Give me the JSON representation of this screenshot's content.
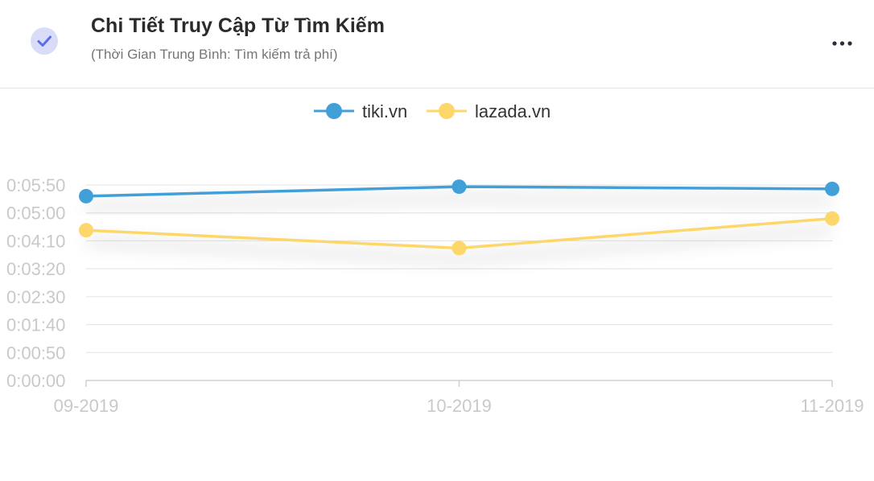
{
  "header": {
    "title": "Chi Tiết Truy Cập Từ Tìm Kiếm",
    "subtitle": "(Thời Gian Trung Bình: Tìm kiếm trả phí)",
    "check_icon": "check-icon",
    "more_icon": "more-horizontal-icon",
    "badge_color": "#d9dcf7",
    "check_color": "#5b6ee8"
  },
  "chart_data": {
    "type": "line",
    "categories": [
      "09-2019",
      "10-2019",
      "11-2019"
    ],
    "y_ticks": [
      "0:00:00",
      "0:00:50",
      "0:01:40",
      "0:02:30",
      "0:03:20",
      "0:04:10",
      "0:05:00",
      "0:05:50"
    ],
    "ylim": [
      0,
      350
    ],
    "series": [
      {
        "name": "tiki.vn",
        "color": "#42a0d8",
        "values": [
          330,
          347,
          343
        ]
      },
      {
        "name": "lazada.vn",
        "color": "#fdd76a",
        "values": [
          269,
          237,
          290
        ]
      }
    ],
    "legend_position": "top-center",
    "grid": true
  }
}
